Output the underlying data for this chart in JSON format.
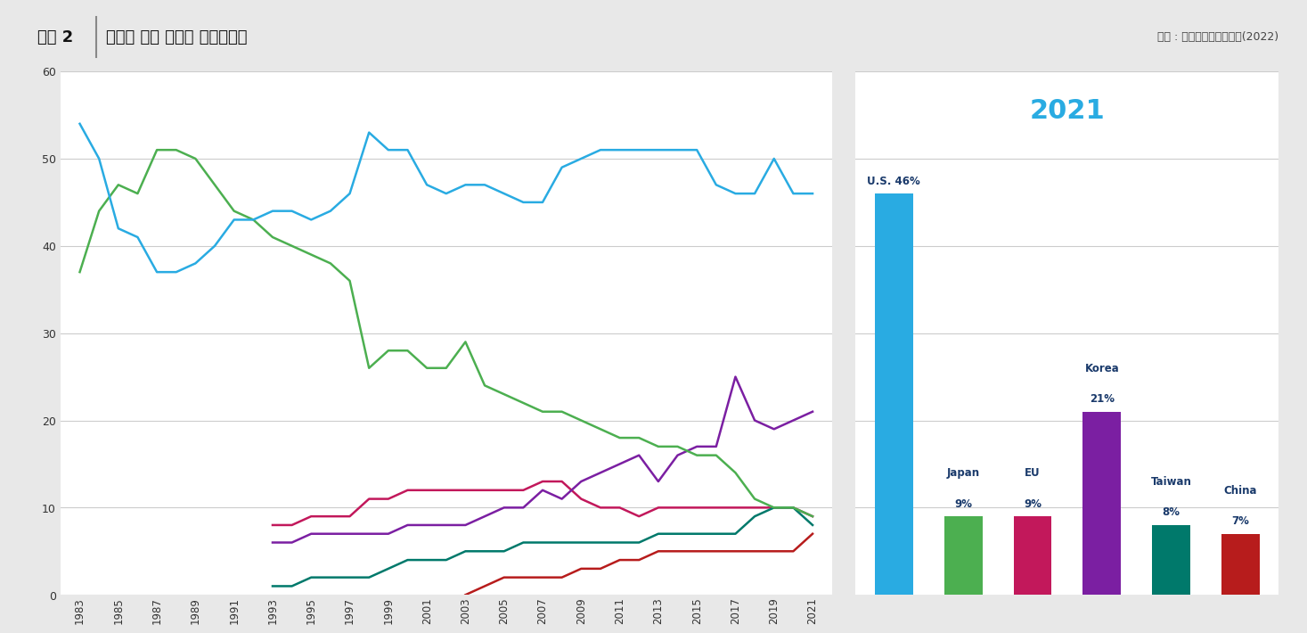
{
  "title_prefix": "그림 2",
  "title_main": "국가별 세계 반도체 시장점유율",
  "source": "출처 : 미국반도체산업협회(2022)",
  "background_color": "#e8e8e8",
  "plot_bg_color": "#ffffff",
  "header_bg_color": "#d0d0d0",
  "years_US": [
    1983,
    1984,
    1985,
    1986,
    1987,
    1988,
    1989,
    1990,
    1991,
    1992,
    1993,
    1994,
    1995,
    1996,
    1997,
    1998,
    1999,
    2000,
    2001,
    2002,
    2003,
    2004,
    2005,
    2006,
    2007,
    2008,
    2009,
    2010,
    2011,
    2012,
    2013,
    2014,
    2015,
    2016,
    2017,
    2018,
    2019,
    2020,
    2021
  ],
  "US": [
    54,
    50,
    42,
    41,
    37,
    37,
    38,
    40,
    43,
    43,
    44,
    44,
    43,
    44,
    46,
    53,
    51,
    51,
    47,
    46,
    47,
    47,
    46,
    45,
    45,
    49,
    50,
    51,
    51,
    51,
    51,
    51,
    51,
    47,
    46,
    46,
    50,
    46,
    46
  ],
  "years_Japan": [
    1983,
    1984,
    1985,
    1986,
    1987,
    1988,
    1989,
    1990,
    1991,
    1992,
    1993,
    1994,
    1995,
    1996,
    1997,
    1998,
    1999,
    2000,
    2001,
    2002,
    2003,
    2004,
    2005,
    2006,
    2007,
    2008,
    2009,
    2010,
    2011,
    2012,
    2013,
    2014,
    2015,
    2016,
    2017,
    2018,
    2019,
    2020,
    2021
  ],
  "Japan": [
    37,
    44,
    47,
    46,
    51,
    51,
    50,
    47,
    44,
    43,
    41,
    40,
    39,
    38,
    36,
    26,
    28,
    28,
    26,
    26,
    29,
    24,
    23,
    22,
    21,
    21,
    20,
    19,
    18,
    18,
    17,
    17,
    16,
    16,
    14,
    11,
    10,
    10,
    9
  ],
  "years_EU": [
    1993,
    1994,
    1995,
    1996,
    1997,
    1998,
    1999,
    2000,
    2001,
    2002,
    2003,
    2004,
    2005,
    2006,
    2007,
    2008,
    2009,
    2010,
    2011,
    2012,
    2013,
    2014,
    2015,
    2016,
    2017,
    2018,
    2019,
    2020,
    2021
  ],
  "EU": [
    8,
    8,
    9,
    9,
    9,
    11,
    11,
    12,
    12,
    12,
    12,
    12,
    12,
    12,
    13,
    13,
    11,
    10,
    10,
    9,
    10,
    10,
    10,
    10,
    10,
    10,
    10,
    10,
    9
  ],
  "years_Korea": [
    1993,
    1994,
    1995,
    1996,
    1997,
    1998,
    1999,
    2000,
    2001,
    2002,
    2003,
    2004,
    2005,
    2006,
    2007,
    2008,
    2009,
    2010,
    2011,
    2012,
    2013,
    2014,
    2015,
    2016,
    2017,
    2018,
    2019,
    2020,
    2021
  ],
  "Korea": [
    6,
    6,
    7,
    7,
    7,
    7,
    7,
    8,
    8,
    8,
    8,
    9,
    10,
    10,
    12,
    11,
    13,
    14,
    15,
    16,
    13,
    16,
    17,
    17,
    25,
    20,
    19,
    20,
    21
  ],
  "years_Taiwan": [
    1993,
    1994,
    1995,
    1996,
    1997,
    1998,
    1999,
    2000,
    2001,
    2002,
    2003,
    2004,
    2005,
    2006,
    2007,
    2008,
    2009,
    2010,
    2011,
    2012,
    2013,
    2014,
    2015,
    2016,
    2017,
    2018,
    2019,
    2020,
    2021
  ],
  "Taiwan": [
    1,
    1,
    2,
    2,
    2,
    2,
    3,
    4,
    4,
    4,
    5,
    5,
    5,
    6,
    6,
    6,
    6,
    6,
    6,
    6,
    7,
    7,
    7,
    7,
    7,
    9,
    10,
    10,
    8
  ],
  "years_China": [
    2003,
    2004,
    2005,
    2006,
    2007,
    2008,
    2009,
    2010,
    2011,
    2012,
    2013,
    2014,
    2015,
    2016,
    2017,
    2018,
    2019,
    2020,
    2021
  ],
  "China": [
    0,
    1,
    2,
    2,
    2,
    2,
    3,
    3,
    4,
    4,
    5,
    5,
    5,
    5,
    5,
    5,
    5,
    5,
    7
  ],
  "line_colors": {
    "US": "#29ABE2",
    "Japan": "#4CAF50",
    "EU": "#C2185B",
    "Korea": "#7B1FA2",
    "Taiwan": "#00796B",
    "China": "#B71C1C"
  },
  "bar_categories": [
    "U.S.",
    "Japan",
    "EU",
    "Korea",
    "Taiwan",
    "China"
  ],
  "bar_values": [
    46,
    9,
    9,
    21,
    8,
    7
  ],
  "bar_colors": [
    "#29ABE2",
    "#4CAF50",
    "#C2185B",
    "#7B1FA2",
    "#00796B",
    "#B71C1C"
  ],
  "year_2021_title": "2021",
  "ylim": [
    0,
    60
  ],
  "yticks": [
    0,
    10,
    20,
    30,
    40,
    50,
    60
  ],
  "xticks": [
    1983,
    1985,
    1987,
    1989,
    1991,
    1993,
    1995,
    1997,
    1999,
    2001,
    2003,
    2005,
    2007,
    2009,
    2011,
    2013,
    2015,
    2017,
    2019,
    2021
  ]
}
